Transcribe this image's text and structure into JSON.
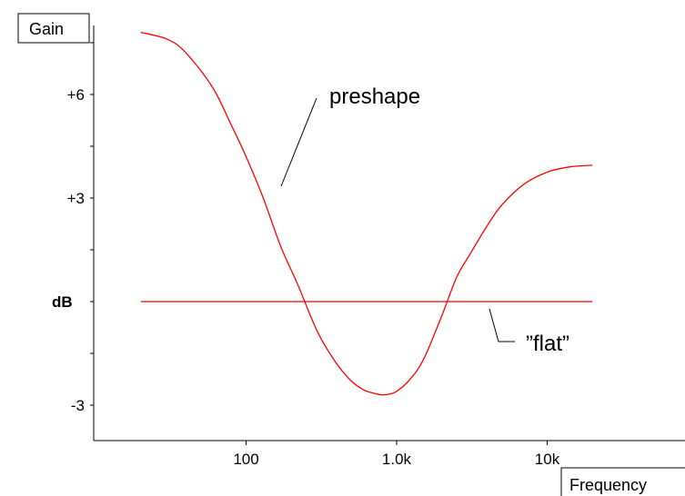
{
  "chart_data": {
    "type": "line",
    "xscale": "log",
    "xlim": [
      10,
      100000
    ],
    "ylim": [
      -4,
      9
    ],
    "xticks": [
      {
        "value": 100,
        "label": "100"
      },
      {
        "value": 1000,
        "label": "1.0k"
      },
      {
        "value": 10000,
        "label": "10k"
      }
    ],
    "yticks": [
      {
        "value": 6,
        "label": "+6"
      },
      {
        "value": 3,
        "label": "+3"
      },
      {
        "value": -3,
        "label": "-3"
      }
    ],
    "y_minor_ticks": [
      -4.5,
      -1.5,
      1.5,
      4.5,
      7.5
    ],
    "y_zero_label": "dB",
    "ylabel_box": "Gain",
    "xlabel_box": "Frequency",
    "series": [
      {
        "name": "preshape",
        "color": "#ff0000",
        "x": [
          20,
          30,
          40,
          60,
          80,
          100,
          130,
          170,
          220,
          300,
          400,
          500,
          600,
          700,
          800,
          900,
          1000,
          1200,
          1500,
          2000,
          2500,
          3000,
          4000,
          5000,
          7000,
          10000,
          14000,
          20000
        ],
        "y": [
          7.8,
          7.6,
          7.2,
          6.2,
          5.1,
          4.2,
          3.0,
          1.6,
          0.5,
          -0.9,
          -1.8,
          -2.3,
          -2.55,
          -2.65,
          -2.7,
          -2.68,
          -2.6,
          -2.3,
          -1.7,
          -0.4,
          0.7,
          1.3,
          2.2,
          2.8,
          3.4,
          3.75,
          3.9,
          3.95
        ]
      },
      {
        "name": "\"flat\"",
        "color": "#ff0000",
        "x": [
          20,
          20000
        ],
        "y": [
          0,
          0
        ]
      }
    ],
    "annotations": [
      {
        "text": "preshape",
        "series": "preshape"
      },
      {
        "text": "”flat”",
        "series": "\"flat\""
      }
    ],
    "grid": false
  }
}
